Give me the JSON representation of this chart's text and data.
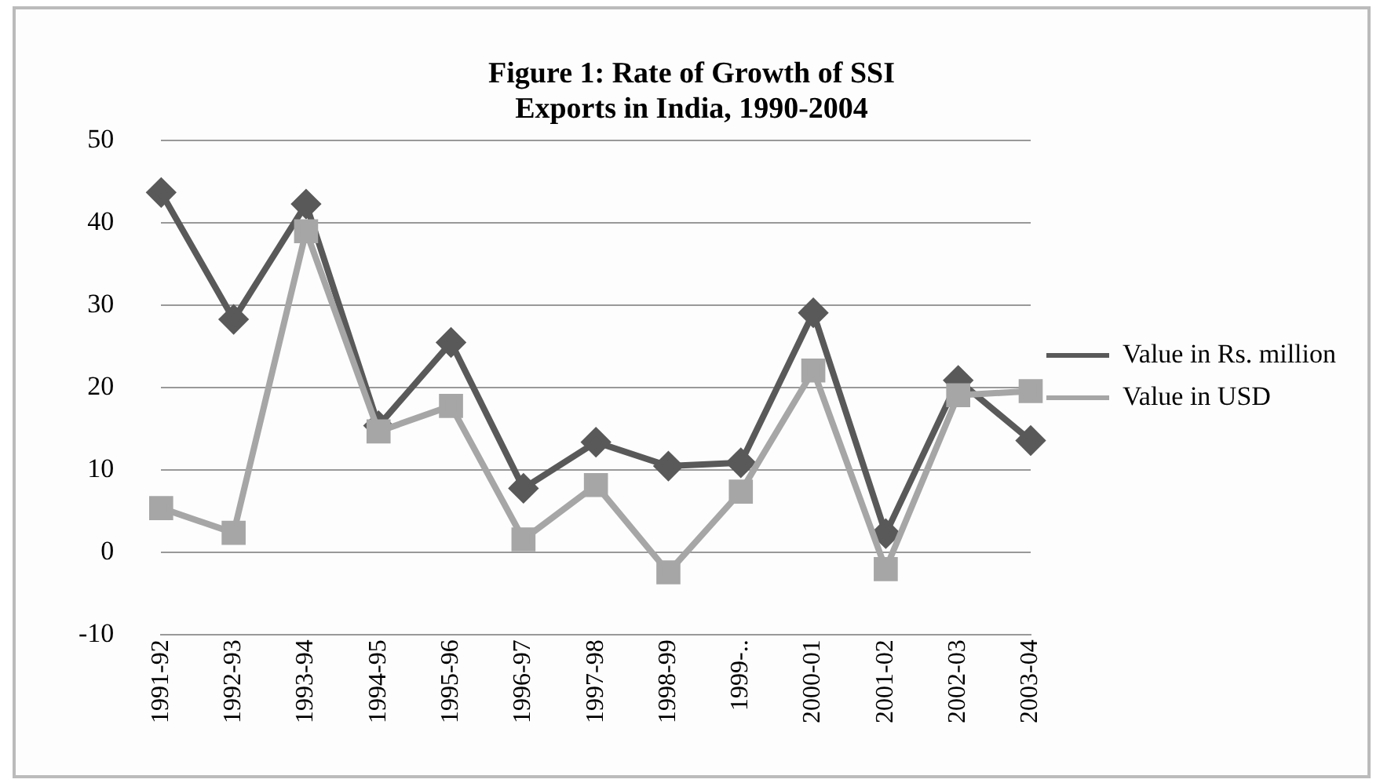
{
  "chart_data": {
    "type": "line",
    "title": "Figure 1: Rate of Growth of SSI Exports in India, 1990-2004",
    "categories": [
      "1991-92",
      "1992-93",
      "1993-94",
      "1994-95",
      "1995-96",
      "1996-97",
      "1997-98",
      "1998-99",
      "1999-..",
      "2000-01",
      "2001-02",
      "2002-03",
      "2003-04"
    ],
    "series": [
      {
        "name": "Value in Rs. million",
        "color": "#595959",
        "marker": "diamond",
        "values": [
          43.7,
          28.3,
          42.3,
          15.4,
          25.5,
          7.8,
          13.4,
          10.5,
          10.9,
          29.1,
          2.3,
          20.9,
          13.6
        ]
      },
      {
        "name": "Value in USD",
        "color": "#a6a6a6",
        "marker": "square",
        "values": [
          5.4,
          2.4,
          39.0,
          14.7,
          17.8,
          1.6,
          8.2,
          -2.4,
          7.4,
          22.1,
          -2.0,
          19.1,
          19.6
        ]
      }
    ],
    "ylim": [
      -10,
      50
    ],
    "yticks": [
      -10,
      0,
      10,
      20,
      30,
      40,
      50
    ],
    "grid": "y",
    "legend": "right",
    "line_style": "solid"
  }
}
